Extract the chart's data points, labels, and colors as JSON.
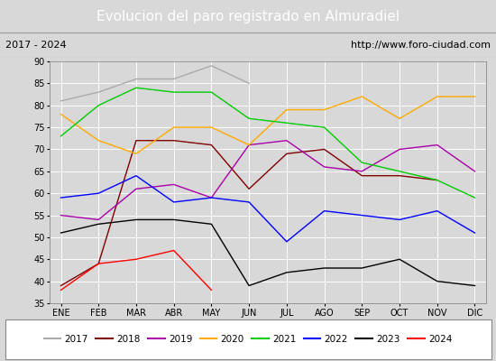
{
  "title": "Evolucion del paro registrado en Almuradiel",
  "subtitle_left": "2017 - 2024",
  "subtitle_right": "http://www.foro-ciudad.com",
  "months": [
    "ENE",
    "FEB",
    "MAR",
    "ABR",
    "MAY",
    "JUN",
    "JUL",
    "AGO",
    "SEP",
    "OCT",
    "NOV",
    "DIC"
  ],
  "ylim": [
    35,
    90
  ],
  "yticks": [
    90,
    85,
    80,
    75,
    70,
    65,
    60,
    55,
    50,
    45,
    40,
    35
  ],
  "series": {
    "2017": {
      "color": "#aaaaaa",
      "values": [
        81,
        83,
        86,
        86,
        89,
        85,
        null,
        null,
        null,
        null,
        null,
        null
      ]
    },
    "2018": {
      "color": "#800000",
      "values": [
        39,
        44,
        72,
        72,
        71,
        61,
        69,
        70,
        64,
        64,
        63,
        null
      ]
    },
    "2019": {
      "color": "#aa00aa",
      "values": [
        55,
        54,
        61,
        62,
        59,
        71,
        72,
        66,
        65,
        70,
        71,
        65
      ]
    },
    "2020": {
      "color": "#ffaa00",
      "values": [
        78,
        72,
        69,
        75,
        75,
        71,
        79,
        79,
        82,
        77,
        82,
        82
      ]
    },
    "2021": {
      "color": "#00cc00",
      "values": [
        73,
        80,
        84,
        83,
        83,
        77,
        76,
        75,
        67,
        65,
        63,
        59
      ]
    },
    "2022": {
      "color": "#0000ff",
      "values": [
        59,
        60,
        64,
        58,
        59,
        58,
        49,
        56,
        55,
        54,
        56,
        51
      ]
    },
    "2023": {
      "color": "#000000",
      "values": [
        51,
        53,
        54,
        54,
        53,
        39,
        42,
        43,
        43,
        45,
        40,
        39
      ]
    },
    "2024": {
      "color": "#ff0000",
      "values": [
        38,
        44,
        45,
        47,
        38,
        null,
        null,
        null,
        null,
        null,
        null,
        null
      ]
    }
  },
  "legend_years": [
    "2017",
    "2018",
    "2019",
    "2020",
    "2021",
    "2022",
    "2023",
    "2024"
  ],
  "legend_colors": [
    "#aaaaaa",
    "#800000",
    "#aa00aa",
    "#ffaa00",
    "#00cc00",
    "#0000ff",
    "#000000",
    "#ff0000"
  ],
  "title_bg_color": "#3d8fc6",
  "title_color": "#ffffff",
  "subtitle_bg_color": "#f0f0f0",
  "plot_bg_color": "#d8d8d8",
  "fig_bg_color": "#d8d8d8",
  "grid_color": "#ffffff",
  "title_fontsize": 11,
  "subtitle_fontsize": 8,
  "tick_fontsize": 7,
  "legend_fontsize": 7.5
}
